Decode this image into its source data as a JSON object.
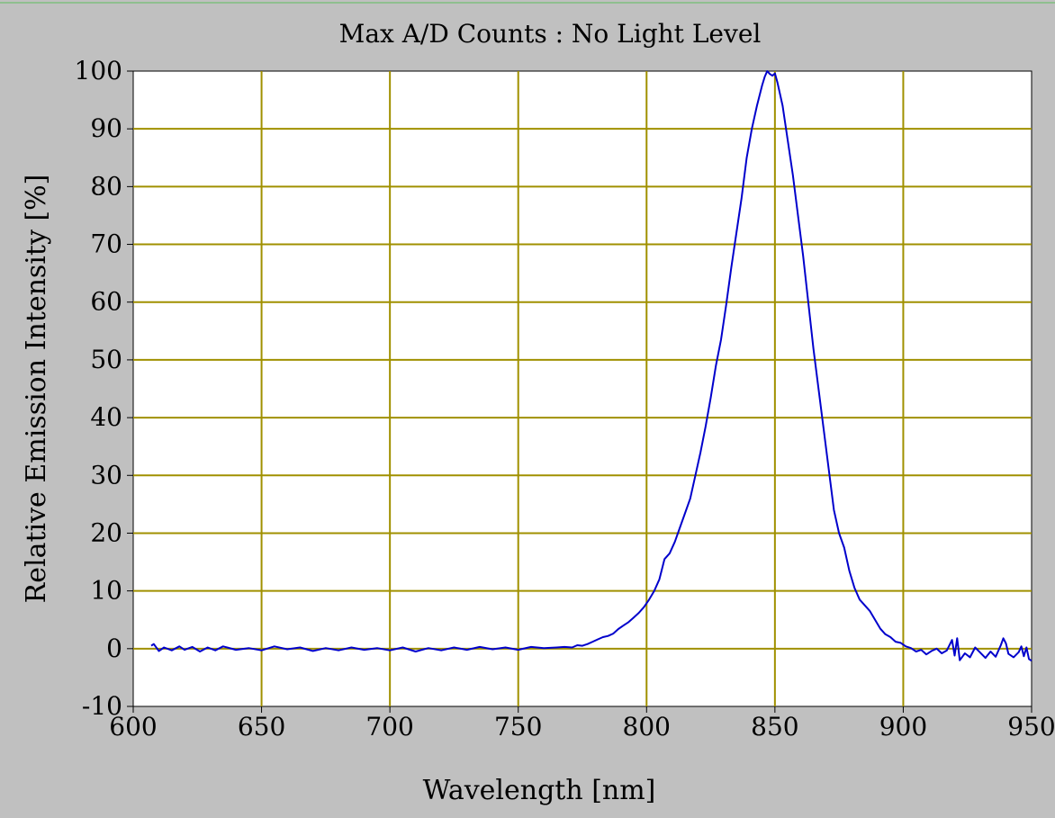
{
  "chart_data": {
    "type": "line",
    "title": "Max A/D Counts : No Light Level",
    "xlabel": "Wavelength [nm]",
    "ylabel": "Relative Emission Intensity [%]",
    "xlim": [
      600,
      950
    ],
    "ylim": [
      -10,
      100
    ],
    "xticks": [
      600,
      650,
      700,
      750,
      800,
      850,
      900,
      950
    ],
    "yticks": [
      -10,
      0,
      10,
      20,
      30,
      40,
      50,
      60,
      70,
      80,
      90,
      100
    ],
    "xtick_labels": [
      "600",
      "650",
      "700",
      "750",
      "800",
      "850",
      "900",
      "950"
    ],
    "ytick_labels": [
      "-10",
      "0",
      "10",
      "20",
      "30",
      "40",
      "50",
      "60",
      "70",
      "80",
      "90",
      "100"
    ],
    "grid": true,
    "colors": {
      "background": "#c0c0c0",
      "plot_area": "#ffffff",
      "grid": "#a09000",
      "line": "#0000cc"
    },
    "series": [
      {
        "points": [
          [
            607,
            0.5
          ],
          [
            608,
            0.8
          ],
          [
            610,
            -0.4
          ],
          [
            612,
            0.2
          ],
          [
            615,
            -0.3
          ],
          [
            618,
            0.4
          ],
          [
            620,
            -0.2
          ],
          [
            623,
            0.3
          ],
          [
            626,
            -0.5
          ],
          [
            629,
            0.2
          ],
          [
            632,
            -0.3
          ],
          [
            635,
            0.4
          ],
          [
            640,
            -0.2
          ],
          [
            645,
            0.1
          ],
          [
            650,
            -0.3
          ],
          [
            655,
            0.4
          ],
          [
            660,
            -0.1
          ],
          [
            665,
            0.2
          ],
          [
            670,
            -0.4
          ],
          [
            675,
            0.1
          ],
          [
            680,
            -0.3
          ],
          [
            685,
            0.2
          ],
          [
            690,
            -0.2
          ],
          [
            695,
            0.1
          ],
          [
            700,
            -0.3
          ],
          [
            705,
            0.2
          ],
          [
            710,
            -0.5
          ],
          [
            715,
            0.1
          ],
          [
            720,
            -0.3
          ],
          [
            725,
            0.2
          ],
          [
            730,
            -0.2
          ],
          [
            735,
            0.3
          ],
          [
            740,
            -0.1
          ],
          [
            745,
            0.2
          ],
          [
            750,
            -0.2
          ],
          [
            755,
            0.3
          ],
          [
            760,
            0.1
          ],
          [
            765,
            0.2
          ],
          [
            768,
            0.3
          ],
          [
            771,
            0.2
          ],
          [
            773,
            0.6
          ],
          [
            775,
            0.5
          ],
          [
            777,
            0.8
          ],
          [
            779,
            1.2
          ],
          [
            781,
            1.6
          ],
          [
            783,
            2.0
          ],
          [
            785,
            2.2
          ],
          [
            787,
            2.6
          ],
          [
            789,
            3.4
          ],
          [
            791,
            4.0
          ],
          [
            793,
            4.6
          ],
          [
            795,
            5.4
          ],
          [
            797,
            6.2
          ],
          [
            799,
            7.2
          ],
          [
            801,
            8.5
          ],
          [
            803,
            10.0
          ],
          [
            805,
            12.0
          ],
          [
            807,
            15.5
          ],
          [
            809,
            16.5
          ],
          [
            811,
            18.5
          ],
          [
            813,
            21.0
          ],
          [
            815,
            23.5
          ],
          [
            817,
            26.0
          ],
          [
            819,
            30.0
          ],
          [
            821,
            34.0
          ],
          [
            823,
            38.5
          ],
          [
            825,
            43.5
          ],
          [
            827,
            49.0
          ],
          [
            829,
            53.5
          ],
          [
            831,
            59.5
          ],
          [
            833,
            66.0
          ],
          [
            835,
            72.0
          ],
          [
            837,
            78.0
          ],
          [
            839,
            85.0
          ],
          [
            841,
            90.0
          ],
          [
            843,
            94.0
          ],
          [
            845,
            97.5
          ],
          [
            846,
            99.0
          ],
          [
            847,
            100.0
          ],
          [
            848,
            99.5
          ],
          [
            849,
            99.2
          ],
          [
            850,
            99.6
          ],
          [
            851,
            98.0
          ],
          [
            853,
            94.0
          ],
          [
            855,
            88.0
          ],
          [
            857,
            82.0
          ],
          [
            859,
            75.0
          ],
          [
            861,
            68.0
          ],
          [
            863,
            60.0
          ],
          [
            865,
            52.0
          ],
          [
            867,
            45.0
          ],
          [
            869,
            38.0
          ],
          [
            871,
            31.0
          ],
          [
            873,
            24.0
          ],
          [
            875,
            20.0
          ],
          [
            877,
            17.5
          ],
          [
            879,
            13.5
          ],
          [
            881,
            10.5
          ],
          [
            883,
            8.5
          ],
          [
            885,
            7.5
          ],
          [
            887,
            6.5
          ],
          [
            889,
            5.0
          ],
          [
            891,
            3.5
          ],
          [
            893,
            2.5
          ],
          [
            895,
            2.0
          ],
          [
            897,
            1.2
          ],
          [
            899,
            1.0
          ],
          [
            901,
            0.4
          ],
          [
            903,
            0.1
          ],
          [
            905,
            -0.5
          ],
          [
            907,
            -0.2
          ],
          [
            909,
            -1.0
          ],
          [
            911,
            -0.4
          ],
          [
            913,
            0.0
          ],
          [
            915,
            -0.8
          ],
          [
            917,
            -0.3
          ],
          [
            919,
            1.5
          ],
          [
            920,
            -1.2
          ],
          [
            921,
            1.8
          ],
          [
            922,
            -2.0
          ],
          [
            924,
            -0.8
          ],
          [
            926,
            -1.5
          ],
          [
            928,
            0.2
          ],
          [
            930,
            -0.7
          ],
          [
            932,
            -1.6
          ],
          [
            934,
            -0.5
          ],
          [
            936,
            -1.4
          ],
          [
            938,
            0.6
          ],
          [
            939,
            1.8
          ],
          [
            940,
            0.9
          ],
          [
            941,
            -0.9
          ],
          [
            943,
            -1.5
          ],
          [
            945,
            -0.6
          ],
          [
            946,
            0.4
          ],
          [
            947,
            -1.3
          ],
          [
            948,
            0.2
          ],
          [
            949,
            -1.8
          ],
          [
            950,
            -2.1
          ]
        ]
      }
    ]
  }
}
